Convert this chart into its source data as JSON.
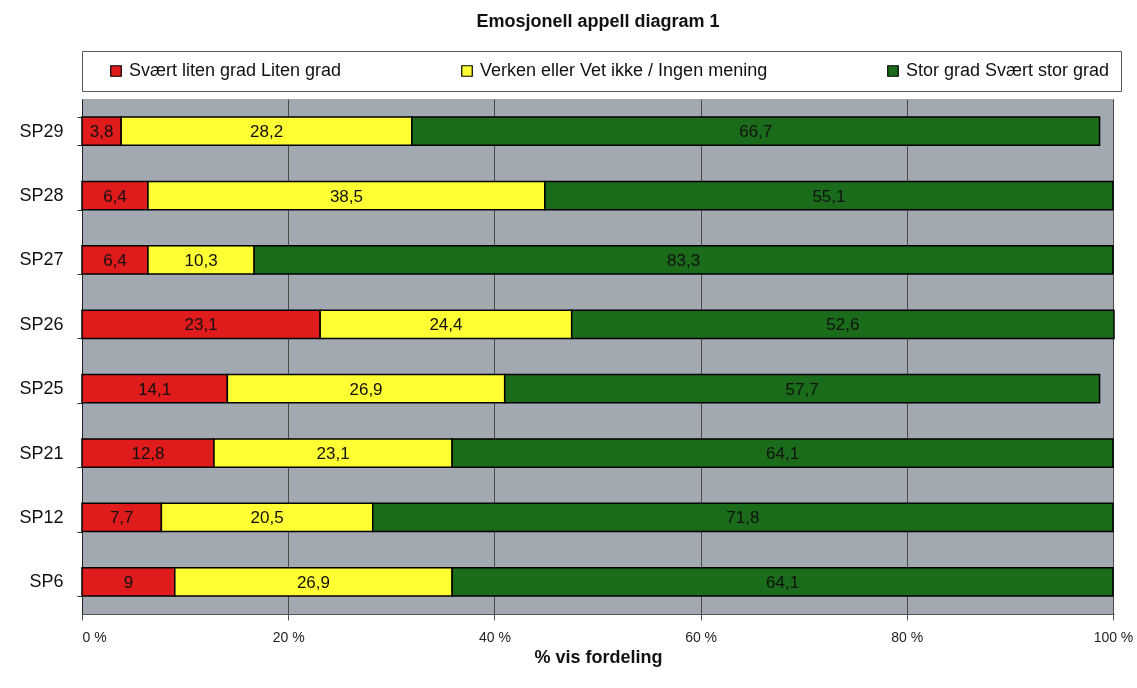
{
  "chart_data": {
    "type": "bar",
    "orientation": "horizontal",
    "stacked": true,
    "title": "Emosjonell appell diagram 1",
    "xlabel": "% vis fordeling",
    "categories": [
      "SP29",
      "SP28",
      "SP27",
      "SP26",
      "SP25",
      "SP21",
      "SP12",
      "SP6"
    ],
    "series": [
      {
        "name": "Svært liten grad Liten grad",
        "color": "#e01b1b",
        "values": [
          3.8,
          6.4,
          6.4,
          23.1,
          14.1,
          12.8,
          7.7,
          9
        ],
        "value_labels": [
          "3,8",
          "6,4",
          "6,4",
          "23,1",
          "14,1",
          "12,8",
          "7,7",
          "9"
        ]
      },
      {
        "name": "Verken eller Vet ikke / Ingen mening",
        "color": "#ffff33",
        "values": [
          28.2,
          38.5,
          10.3,
          24.4,
          26.9,
          23.1,
          20.5,
          26.9
        ],
        "value_labels": [
          "28,2",
          "38,5",
          "10,3",
          "24,4",
          "26,9",
          "23,1",
          "20,5",
          "26,9"
        ]
      },
      {
        "name": "Stor grad Svært stor grad",
        "color": "#1a6b1a",
        "values": [
          66.7,
          55.1,
          83.3,
          52.6,
          57.7,
          64.1,
          71.8,
          64.1
        ],
        "value_labels": [
          "66,7",
          "55,1",
          "83,3",
          "52,6",
          "57,7",
          "64,1",
          "71,8",
          "64,1"
        ]
      }
    ],
    "xlim": [
      0,
      100.1
    ],
    "xticks": [
      {
        "value": 0,
        "label": "0 %"
      },
      {
        "value": 20,
        "label": "20 %"
      },
      {
        "value": 40,
        "label": "40 %"
      },
      {
        "value": 60,
        "label": "60 %"
      },
      {
        "value": 80,
        "label": "80 %"
      },
      {
        "value": 100,
        "label": "100 %"
      }
    ],
    "grid": "x",
    "legend": "top"
  }
}
